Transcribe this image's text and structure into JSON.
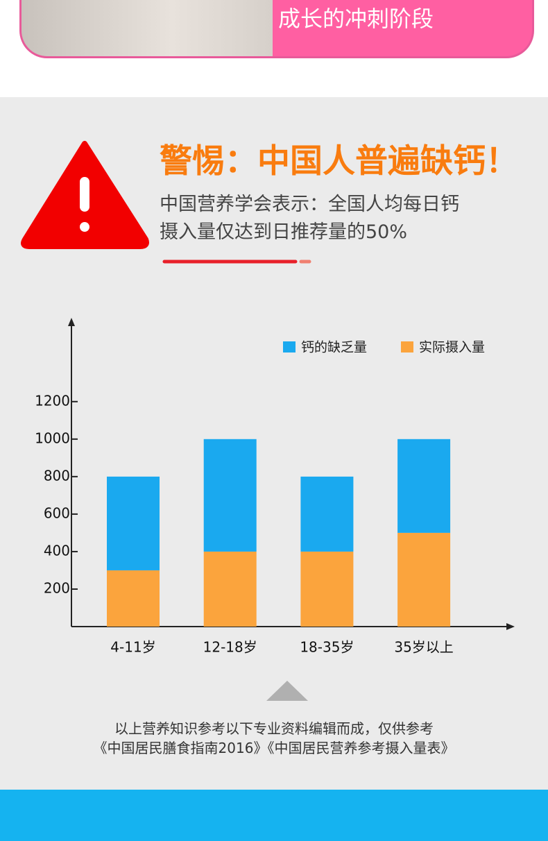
{
  "banner_text": "成长的冲刺阶段",
  "heading": "警惕：中国人普遍缺钙！",
  "subtitle_lines": [
    "中国营养学会表示：全国人均每日钙",
    "摄入量仅达到日推荐量的50%"
  ],
  "footnote_lines": [
    "以上营养知识参考以下专业资料编辑而成，仅供参考",
    "《中国居民膳食指南2016》《中国居民营养参考摄入量表》"
  ],
  "chart_data": {
    "type": "stacked_bar",
    "categories": [
      "4-11岁",
      "12-18岁",
      "18-35岁",
      "35岁以上"
    ],
    "series": [
      {
        "name": "钙的缺乏量",
        "color": "#1aa9ef",
        "values": [
          500,
          600,
          400,
          500
        ]
      },
      {
        "name": "实际摄入量",
        "color": "#fba43d",
        "values": [
          300,
          400,
          400,
          500
        ]
      }
    ],
    "ylim": [
      0,
      1610
    ],
    "yticks": [
      200,
      400,
      600,
      800,
      1000,
      1200
    ],
    "legend": "top-right",
    "grid": false
  }
}
